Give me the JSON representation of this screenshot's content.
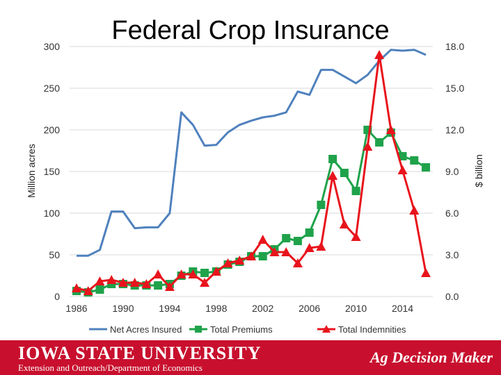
{
  "chart_data": {
    "type": "line",
    "title": "Federal Crop Insurance",
    "ylabel_left": "Million acres",
    "ylabel_right": "$ billion",
    "x": [
      1986,
      1987,
      1988,
      1989,
      1990,
      1991,
      1992,
      1993,
      1994,
      1995,
      1996,
      1997,
      1998,
      1999,
      2000,
      2001,
      2002,
      2003,
      2004,
      2005,
      2006,
      2007,
      2008,
      2009,
      2010,
      2011,
      2012,
      2013,
      2014,
      2015,
      2016
    ],
    "x_ticks": [
      1986,
      1990,
      1994,
      1998,
      2002,
      2006,
      2010,
      2014
    ],
    "ylim_left": [
      0,
      300
    ],
    "yticks_left": [
      0,
      50,
      100,
      150,
      200,
      250,
      300
    ],
    "ylim_right": [
      0,
      18
    ],
    "yticks_right": [
      "0.0",
      "3.0",
      "6.0",
      "9.0",
      "12.0",
      "15.0",
      "18.0"
    ],
    "legend_position": "bottom",
    "grid": "horizontal",
    "series": [
      {
        "name": "Net Acres Insured",
        "axis": "left",
        "marker": "none",
        "color": "#4f81bd",
        "values": [
          49,
          49,
          56,
          102,
          102,
          82,
          83,
          83,
          100,
          221,
          206,
          181,
          182,
          197,
          206,
          211,
          215,
          217,
          221,
          246,
          242,
          272,
          272,
          264,
          256,
          266,
          283,
          296,
          295,
          296,
          290
        ]
      },
      {
        "name": "Total Premiums",
        "axis": "right",
        "marker": "square",
        "color": "#1fa24a",
        "values": [
          0.4,
          0.3,
          0.5,
          0.9,
          0.9,
          0.8,
          0.8,
          0.8,
          0.9,
          1.5,
          1.8,
          1.7,
          1.8,
          2.3,
          2.5,
          2.9,
          2.9,
          3.4,
          4.2,
          4.0,
          4.6,
          6.6,
          9.9,
          8.9,
          7.6,
          12.0,
          11.1,
          11.8,
          10.1,
          9.8,
          9.3
        ]
      },
      {
        "name": "Total Indemnities",
        "axis": "right",
        "marker": "triangle",
        "color": "#e8141c",
        "values": [
          0.6,
          0.4,
          1.1,
          1.2,
          1.0,
          1.0,
          0.9,
          1.6,
          0.7,
          1.6,
          1.6,
          1.0,
          1.8,
          2.4,
          2.6,
          2.9,
          4.1,
          3.2,
          3.2,
          2.4,
          3.5,
          3.6,
          8.7,
          5.2,
          4.3,
          10.8,
          17.4,
          12.0,
          9.1,
          6.2,
          1.7
        ]
      }
    ]
  },
  "footer": {
    "university": "IOWA STATE UNIVERSITY",
    "department": "Extension and Outreach/Department of Economics",
    "brand": "Ag Decision Maker"
  },
  "colors": {
    "footer_bg": "#c8102e",
    "grid": "#d9d9d9"
  }
}
